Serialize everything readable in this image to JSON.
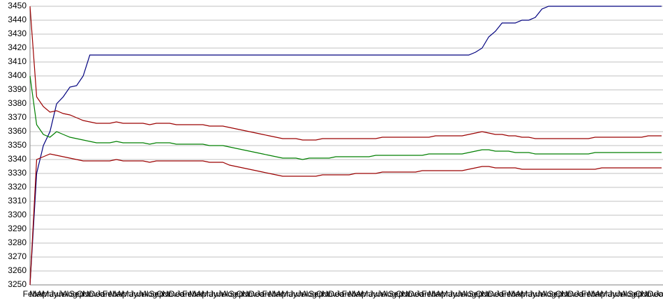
{
  "chart_data": {
    "type": "line",
    "categories": [
      "Feb",
      "Mar",
      "Apr",
      "May",
      "Jun",
      "Jul",
      "Aug",
      "Sep",
      "Oct",
      "Nov",
      "Dec",
      "Jan",
      "Feb",
      "Mar",
      "Apr",
      "May",
      "Jun",
      "Jul",
      "Aug",
      "Sep",
      "Oct",
      "Nov",
      "Dec",
      "Jan",
      "Feb",
      "Mar",
      "Apr",
      "May",
      "Jun",
      "Jul",
      "Aug",
      "Sep",
      "Oct",
      "Nov",
      "Dec",
      "Jan",
      "Feb",
      "Mar",
      "Apr",
      "May",
      "Jun",
      "Jul",
      "Aug",
      "Sep",
      "Oct",
      "Nov",
      "Dec",
      "Jan",
      "Feb",
      "Mar",
      "Apr",
      "May",
      "Jun",
      "Jul",
      "Aug",
      "Sep",
      "Oct",
      "Nov",
      "Dec",
      "Jan",
      "Feb",
      "Mar",
      "Apr",
      "May",
      "Jun",
      "Jul",
      "Aug",
      "Sep",
      "Oct",
      "Nov",
      "Dec",
      "Jan",
      "Feb",
      "Mar",
      "Apr",
      "May",
      "Jun",
      "Jul",
      "Aug",
      "Sep",
      "Oct",
      "Nov",
      "Dec",
      "Jan",
      "Feb",
      "Mar",
      "Apr",
      "May",
      "Jun",
      "Jul",
      "Aug",
      "Sep",
      "Oct",
      "Nov",
      "Dec",
      "Jan"
    ],
    "series": [
      {
        "color": "#00007f",
        "values": [
          3250,
          3330,
          3350,
          3360,
          3380,
          3385,
          3392,
          3393,
          3400,
          3415,
          3415,
          3415,
          3415,
          3415,
          3415,
          3415,
          3415,
          3415,
          3415,
          3415,
          3415,
          3415,
          3415,
          3415,
          3415,
          3415,
          3415,
          3415,
          3415,
          3415,
          3415,
          3415,
          3415,
          3415,
          3415,
          3415,
          3415,
          3415,
          3415,
          3415,
          3415,
          3415,
          3415,
          3415,
          3415,
          3415,
          3415,
          3415,
          3415,
          3415,
          3415,
          3415,
          3415,
          3415,
          3415,
          3415,
          3415,
          3415,
          3415,
          3415,
          3415,
          3415,
          3415,
          3415,
          3415,
          3415,
          3415,
          3417,
          3420,
          3428,
          3432,
          3438,
          3438,
          3438,
          3440,
          3440,
          3442,
          3448,
          3450,
          3450,
          3450,
          3450,
          3450,
          3450,
          3450,
          3450,
          3450,
          3450,
          3450,
          3450,
          3450,
          3450,
          3450,
          3450,
          3450,
          3450
        ]
      },
      {
        "color": "#9b0000",
        "values": [
          3450,
          3385,
          3378,
          3374,
          3375,
          3373,
          3372,
          3370,
          3368,
          3367,
          3366,
          3366,
          3366,
          3367,
          3366,
          3366,
          3366,
          3366,
          3365,
          3366,
          3366,
          3366,
          3365,
          3365,
          3365,
          3365,
          3365,
          3364,
          3364,
          3364,
          3363,
          3362,
          3361,
          3360,
          3359,
          3358,
          3357,
          3356,
          3355,
          3355,
          3355,
          3354,
          3354,
          3354,
          3355,
          3355,
          3355,
          3355,
          3355,
          3355,
          3355,
          3355,
          3355,
          3356,
          3356,
          3356,
          3356,
          3356,
          3356,
          3356,
          3356,
          3357,
          3357,
          3357,
          3357,
          3357,
          3358,
          3359,
          3360,
          3359,
          3358,
          3358,
          3357,
          3357,
          3356,
          3356,
          3355,
          3355,
          3355,
          3355,
          3355,
          3355,
          3355,
          3355,
          3355,
          3356,
          3356,
          3356,
          3356,
          3356,
          3356,
          3356,
          3356,
          3357,
          3357,
          3357
        ]
      },
      {
        "color": "#007f00",
        "values": [
          3400,
          3365,
          3358,
          3356,
          3360,
          3358,
          3356,
          3355,
          3354,
          3353,
          3352,
          3352,
          3352,
          3353,
          3352,
          3352,
          3352,
          3352,
          3351,
          3352,
          3352,
          3352,
          3351,
          3351,
          3351,
          3351,
          3351,
          3350,
          3350,
          3350,
          3349,
          3348,
          3347,
          3346,
          3345,
          3344,
          3343,
          3342,
          3341,
          3341,
          3341,
          3340,
          3341,
          3341,
          3341,
          3341,
          3342,
          3342,
          3342,
          3342,
          3342,
          3342,
          3343,
          3343,
          3343,
          3343,
          3343,
          3343,
          3343,
          3343,
          3344,
          3344,
          3344,
          3344,
          3344,
          3344,
          3345,
          3346,
          3347,
          3347,
          3346,
          3346,
          3346,
          3345,
          3345,
          3345,
          3344,
          3344,
          3344,
          3344,
          3344,
          3344,
          3344,
          3344,
          3344,
          3345,
          3345,
          3345,
          3345,
          3345,
          3345,
          3345,
          3345,
          3345,
          3345,
          3345
        ]
      },
      {
        "color": "#9b0000",
        "values": [
          3250,
          3340,
          3342,
          3344,
          3343,
          3342,
          3341,
          3340,
          3339,
          3339,
          3339,
          3339,
          3339,
          3340,
          3339,
          3339,
          3339,
          3339,
          3338,
          3339,
          3339,
          3339,
          3339,
          3339,
          3339,
          3339,
          3339,
          3338,
          3338,
          3338,
          3336,
          3335,
          3334,
          3333,
          3332,
          3331,
          3330,
          3329,
          3328,
          3328,
          3328,
          3328,
          3328,
          3328,
          3329,
          3329,
          3329,
          3329,
          3329,
          3330,
          3330,
          3330,
          3330,
          3331,
          3331,
          3331,
          3331,
          3331,
          3331,
          3332,
          3332,
          3332,
          3332,
          3332,
          3332,
          3332,
          3333,
          3334,
          3335,
          3335,
          3334,
          3334,
          3334,
          3334,
          3333,
          3333,
          3333,
          3333,
          3333,
          3333,
          3333,
          3333,
          3333,
          3333,
          3333,
          3333,
          3334,
          3334,
          3334,
          3334,
          3334,
          3334,
          3334,
          3334,
          3334,
          3334
        ]
      }
    ],
    "ylim": [
      3250,
      3450
    ],
    "yticks": [
      3250,
      3260,
      3270,
      3280,
      3290,
      3300,
      3310,
      3320,
      3330,
      3340,
      3350,
      3360,
      3370,
      3380,
      3390,
      3400,
      3410,
      3420,
      3430,
      3440,
      3450
    ],
    "grid": true
  }
}
